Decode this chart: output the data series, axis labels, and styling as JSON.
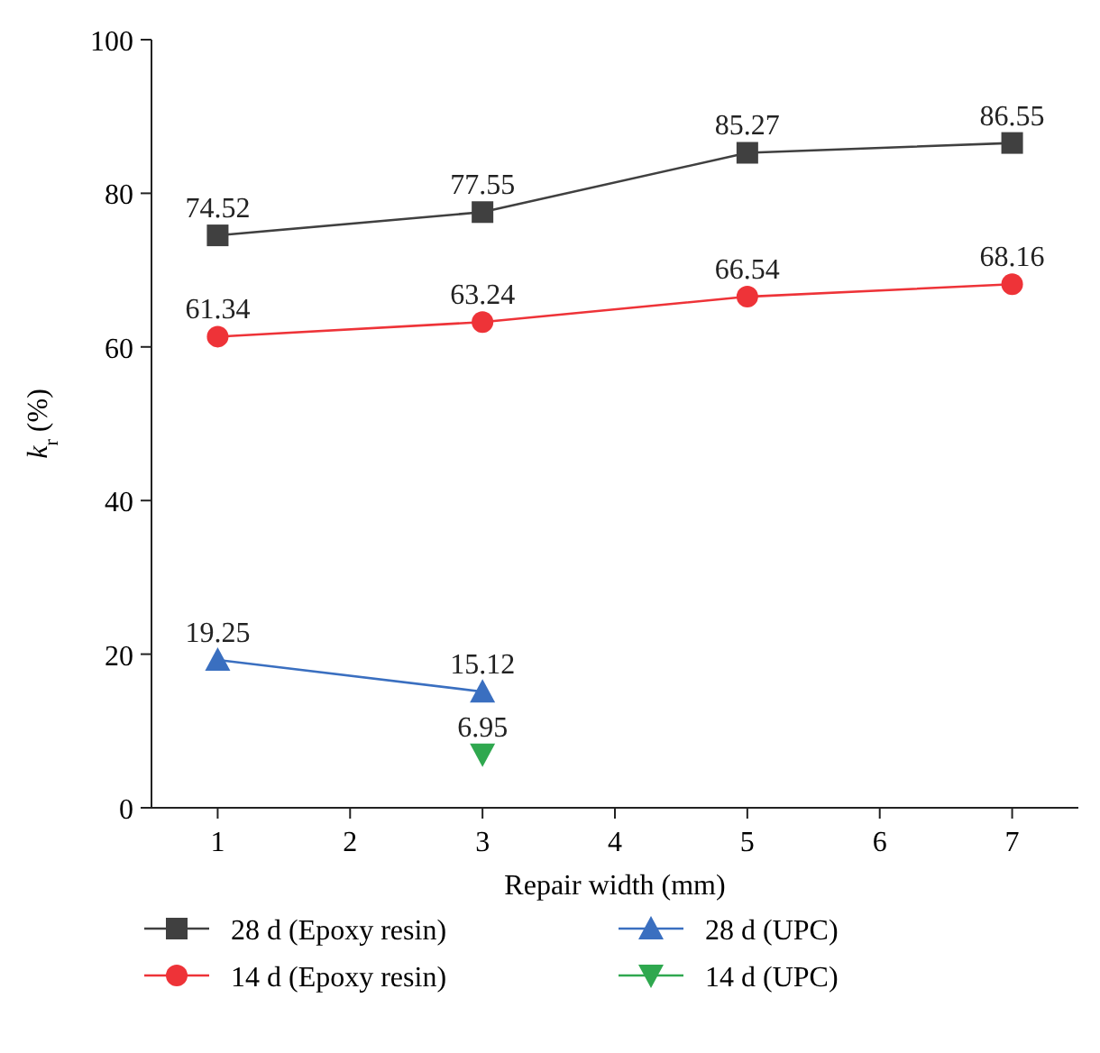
{
  "chart_data": {
    "type": "line",
    "xlabel": "Repair width (mm)",
    "ylabel": "k$_{r}$ (%)",
    "xlim": [
      0.5,
      7.5
    ],
    "xticks": [
      1,
      2,
      3,
      4,
      5,
      6,
      7
    ],
    "ylim": [
      0,
      100
    ],
    "yticks": [
      0,
      20,
      40,
      60,
      80,
      100
    ],
    "grid": false,
    "legend": "bottom",
    "data_labels": true,
    "line_style": "solid",
    "series": [
      {
        "name": "28 d (Epoxy resin)",
        "color": "#404040",
        "marker": "square",
        "x": [
          1,
          3,
          5,
          7
        ],
        "values": [
          74.52,
          77.55,
          85.27,
          86.55
        ]
      },
      {
        "name": "14 d (Epoxy resin)",
        "color": "#ee3338",
        "marker": "circle",
        "x": [
          1,
          3,
          5,
          7
        ],
        "values": [
          61.34,
          63.24,
          66.54,
          68.16
        ]
      },
      {
        "name": "28 d (UPC)",
        "color": "#3a6fc0",
        "marker": "triangle",
        "x": [
          1,
          3
        ],
        "values": [
          19.25,
          15.12
        ]
      },
      {
        "name": "14 d (UPC)",
        "color": "#2fa84f",
        "marker": "triangle-down",
        "x": [
          3
        ],
        "values": [
          6.95
        ]
      }
    ]
  }
}
